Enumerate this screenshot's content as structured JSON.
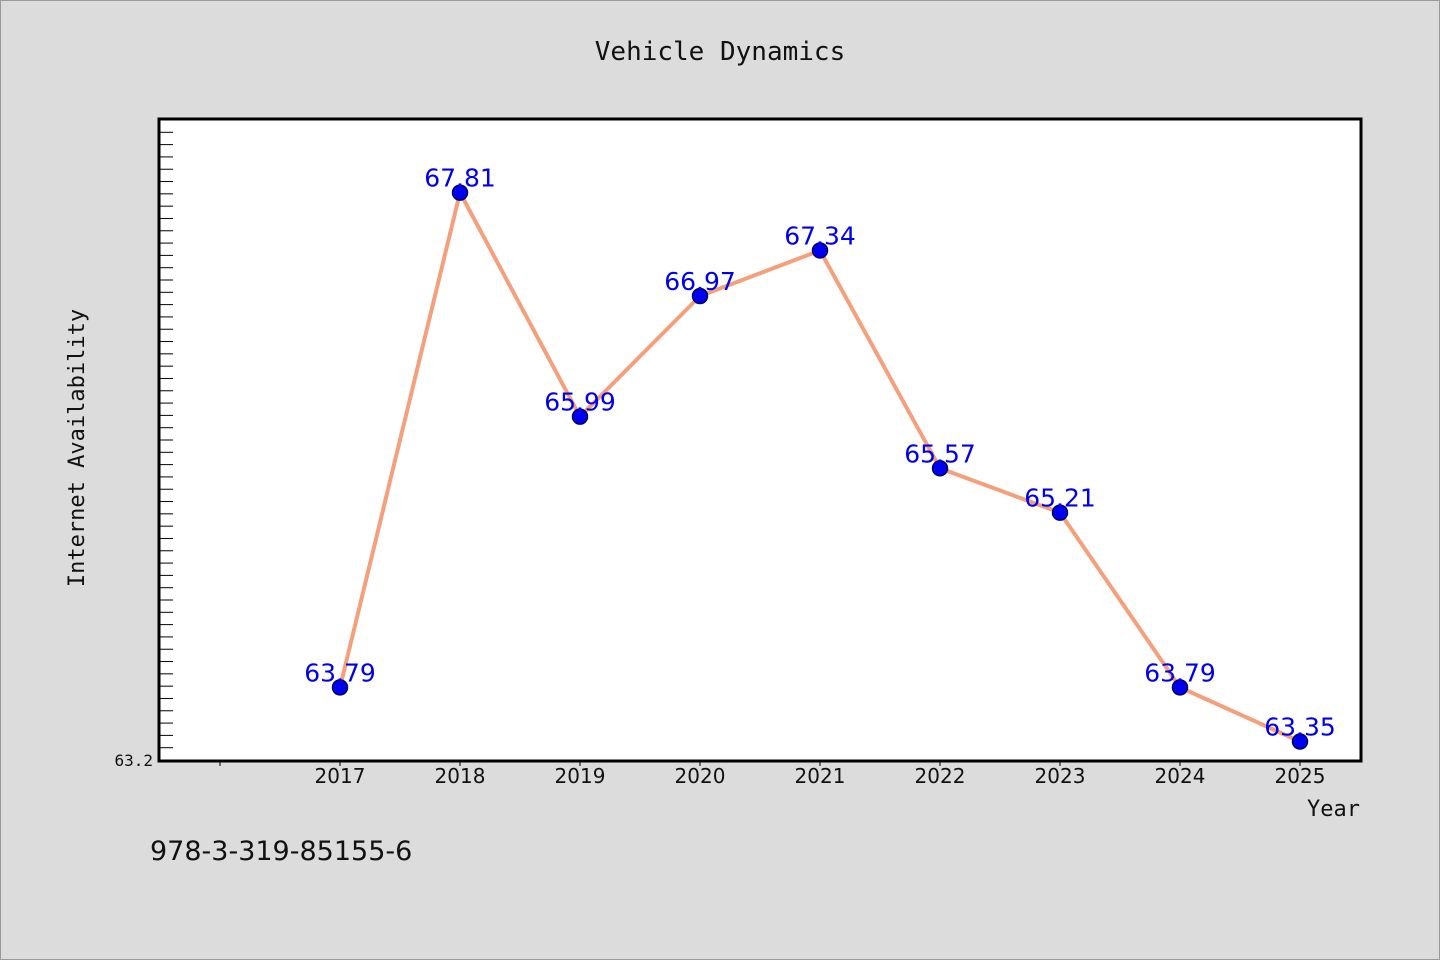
{
  "chart_data": {
    "type": "line",
    "title": "Vehicle Dynamics",
    "xlabel": "Year",
    "ylabel": "Internet Availability",
    "categories": [
      "2017",
      "2018",
      "2019",
      "2020",
      "2021",
      "2022",
      "2023",
      "2024",
      "2025"
    ],
    "series": [
      {
        "values": [
          63.79,
          67.81,
          65.99,
          66.97,
          67.34,
          65.57,
          65.21,
          63.79,
          63.35
        ],
        "labels": [
          "63.79",
          "67.81",
          "65.99",
          "66.97",
          "67.34",
          "65.57",
          "65.21",
          "63.79",
          "63.35"
        ]
      }
    ],
    "ylim": [
      63.2,
      68.4
    ],
    "y_tick_label": "63.2",
    "grid": false,
    "legend": "none",
    "colors": {
      "line": "#f4a07c",
      "marker": "#0000ee",
      "marker_edge": "#000066",
      "data_label": "#0000ee",
      "plot_bg": "#ffffff",
      "page_bg": "#dcdcdc"
    }
  },
  "footer": {
    "code": "978-3-319-85155-6"
  }
}
